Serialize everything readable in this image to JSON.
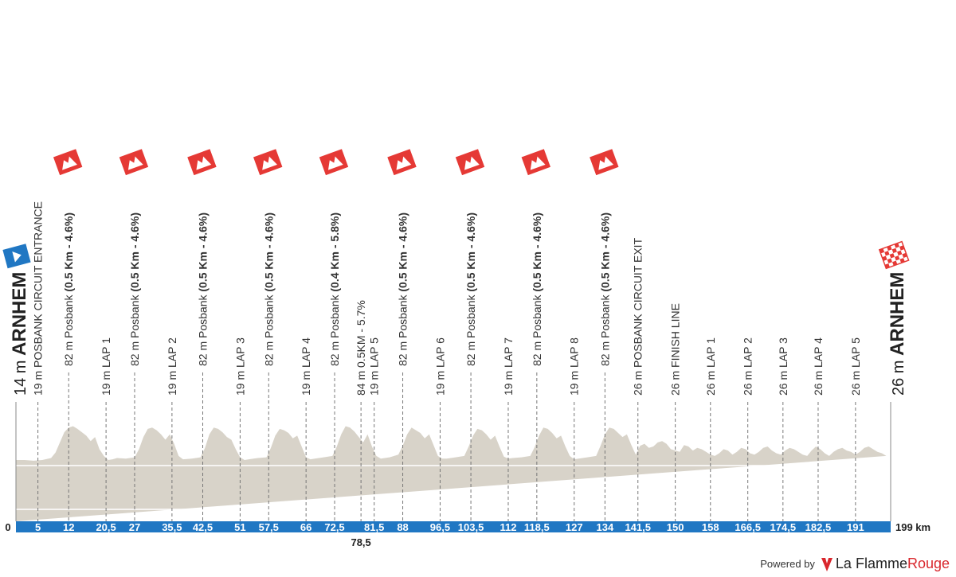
{
  "chart_data": {
    "type": "area",
    "title": "",
    "xlabel": "",
    "ylabel": "",
    "x_unit": "km",
    "x_range": [
      0,
      199
    ],
    "colors": {
      "profile_fill": "#d8d3c9",
      "axis_band": "#2077c3",
      "climb_flag": "#e53935",
      "start_flag": "#2077c3",
      "dash": "#777777",
      "text": "#333333"
    },
    "start": {
      "km": 0,
      "altitude_label": "14 m",
      "place": "ARNHEM"
    },
    "finish": {
      "km": 199,
      "altitude_label": "26 m",
      "place": "ARNHEM"
    },
    "ticks": [
      {
        "km": 5,
        "label": "5"
      },
      {
        "km": 12,
        "label": "12"
      },
      {
        "km": 20.5,
        "label": "20,5"
      },
      {
        "km": 27,
        "label": "27"
      },
      {
        "km": 35.5,
        "label": "35,5"
      },
      {
        "km": 42.5,
        "label": "42,5"
      },
      {
        "km": 51,
        "label": "51"
      },
      {
        "km": 57.5,
        "label": "57,5"
      },
      {
        "km": 66,
        "label": "66"
      },
      {
        "km": 72.5,
        "label": "72,5"
      },
      {
        "km": 78.5,
        "label": "78,5",
        "below": true
      },
      {
        "km": 81.5,
        "label": "81,5"
      },
      {
        "km": 88,
        "label": "88"
      },
      {
        "km": 96.5,
        "label": "96,5"
      },
      {
        "km": 103.5,
        "label": "103,5"
      },
      {
        "km": 112,
        "label": "112"
      },
      {
        "km": 118.5,
        "label": "118,5"
      },
      {
        "km": 127,
        "label": "127"
      },
      {
        "km": 134,
        "label": "134"
      },
      {
        "km": 141.5,
        "label": "141,5"
      },
      {
        "km": 150,
        "label": "150"
      },
      {
        "km": 158,
        "label": "158"
      },
      {
        "km": 166.5,
        "label": "166,5"
      },
      {
        "km": 174.5,
        "label": "174,5"
      },
      {
        "km": 182.5,
        "label": "182,5"
      },
      {
        "km": 191,
        "label": "191"
      }
    ],
    "axis_start_label": "0",
    "axis_end_label": "199 km",
    "waypoints": [
      {
        "km": 5,
        "altitude": "19 m",
        "name": "POSBANK CIRCUIT ENTRANCE",
        "detail": ""
      },
      {
        "km": 12,
        "altitude": "82 m",
        "name": "Posbank",
        "detail": "(0.5 Km - 4.6%)",
        "climb": true
      },
      {
        "km": 20.5,
        "altitude": "19 m",
        "name": "LAP 1",
        "detail": ""
      },
      {
        "km": 27,
        "altitude": "82 m",
        "name": "Posbank",
        "detail": "(0.5 Km - 4.6%)",
        "climb": true
      },
      {
        "km": 35.5,
        "altitude": "19 m",
        "name": "LAP 2",
        "detail": ""
      },
      {
        "km": 42.5,
        "altitude": "82 m",
        "name": "Posbank",
        "detail": "(0.5 Km - 4.6%)",
        "climb": true
      },
      {
        "km": 51,
        "altitude": "19 m",
        "name": "LAP 3",
        "detail": ""
      },
      {
        "km": 57.5,
        "altitude": "82 m",
        "name": "Posbank",
        "detail": "(0.5 Km - 4.6%)",
        "climb": true
      },
      {
        "km": 66,
        "altitude": "19 m",
        "name": "LAP 4",
        "detail": ""
      },
      {
        "km": 72.5,
        "altitude": "82 m",
        "name": "Posbank",
        "detail": "(0.4 Km - 5.8%)",
        "climb": true
      },
      {
        "km": 78.5,
        "altitude": "84 m",
        "name": "0.5KM - 5.7%",
        "detail": ""
      },
      {
        "km": 81.5,
        "altitude": "19 m",
        "name": "LAP 5",
        "detail": ""
      },
      {
        "km": 88,
        "altitude": "82 m",
        "name": "Posbank",
        "detail": "(0.5 Km - 4.6%)",
        "climb": true
      },
      {
        "km": 96.5,
        "altitude": "19 m",
        "name": "LAP 6",
        "detail": ""
      },
      {
        "km": 103.5,
        "altitude": "82 m",
        "name": "Posbank",
        "detail": "(0.5 Km - 4.6%)",
        "climb": true
      },
      {
        "km": 112,
        "altitude": "19 m",
        "name": "LAP 7",
        "detail": ""
      },
      {
        "km": 118.5,
        "altitude": "82 m",
        "name": "Posbank",
        "detail": "(0.5 Km - 4.6%)",
        "climb": true
      },
      {
        "km": 127,
        "altitude": "19 m",
        "name": "LAP 8",
        "detail": ""
      },
      {
        "km": 134,
        "altitude": "82 m",
        "name": "Posbank",
        "detail": "(0.5 Km - 4.6%)",
        "climb": true
      },
      {
        "km": 141.5,
        "altitude": "26 m",
        "name": "POSBANK CIRCUIT EXIT",
        "detail": ""
      },
      {
        "km": 150,
        "altitude": "26 m",
        "name": "FINISH LINE",
        "detail": ""
      },
      {
        "km": 158,
        "altitude": "26 m",
        "name": "LAP 1",
        "detail": ""
      },
      {
        "km": 166.5,
        "altitude": "26 m",
        "name": "LAP 2",
        "detail": ""
      },
      {
        "km": 174.5,
        "altitude": "26 m",
        "name": "LAP 3",
        "detail": ""
      },
      {
        "km": 182.5,
        "altitude": "26 m",
        "name": "LAP 4",
        "detail": ""
      },
      {
        "km": 191,
        "altitude": "26 m",
        "name": "LAP 5",
        "detail": ""
      }
    ],
    "profile": {
      "x": [
        0,
        2,
        4,
        6,
        8,
        9,
        10,
        11,
        12,
        13,
        14,
        15,
        16,
        17,
        18,
        19,
        20,
        21,
        22,
        23,
        25,
        27,
        28,
        29,
        30,
        31,
        32,
        33,
        34,
        35,
        36,
        37,
        38,
        40,
        42,
        43,
        44,
        45,
        46,
        47,
        48,
        49,
        50,
        51,
        52,
        53,
        55,
        57,
        58,
        59,
        60,
        61,
        62,
        63,
        64,
        65,
        66,
        67,
        68,
        70,
        72,
        73,
        74,
        75,
        76,
        77,
        78,
        79,
        80,
        81,
        82,
        83,
        85,
        87,
        88,
        89,
        90,
        91,
        92,
        93,
        94,
        95,
        96,
        97,
        98,
        100,
        102,
        103,
        104,
        105,
        106,
        107,
        108,
        109,
        110,
        111,
        112,
        113,
        115,
        117,
        118,
        119,
        120,
        121,
        122,
        123,
        124,
        125,
        126,
        127,
        128,
        130,
        132,
        133,
        134,
        135,
        136,
        137,
        138,
        139,
        140,
        141,
        142,
        143,
        144,
        145,
        146,
        147,
        148,
        149,
        150,
        151,
        152,
        153,
        154,
        155,
        156,
        157,
        158,
        159,
        160,
        161,
        162,
        163,
        164,
        165,
        166,
        167,
        168,
        169,
        170,
        171,
        172,
        173,
        174,
        175,
        176,
        177,
        178,
        179,
        180,
        181,
        182,
        183,
        184,
        185,
        186,
        187,
        188,
        189,
        190,
        191,
        192,
        193,
        194,
        195,
        196,
        197,
        198,
        199
      ],
      "altitude": [
        14,
        14,
        13,
        14,
        17,
        25,
        40,
        55,
        62,
        64,
        60,
        55,
        50,
        42,
        48,
        30,
        20,
        14,
        15,
        17,
        16,
        18,
        30,
        48,
        60,
        62,
        58,
        52,
        44,
        52,
        38,
        20,
        15,
        16,
        18,
        32,
        52,
        62,
        60,
        55,
        48,
        44,
        30,
        18,
        14,
        15,
        17,
        18,
        32,
        50,
        60,
        58,
        54,
        46,
        50,
        34,
        18,
        15,
        16,
        18,
        20,
        34,
        52,
        64,
        62,
        56,
        48,
        40,
        52,
        34,
        20,
        16,
        18,
        22,
        35,
        52,
        62,
        58,
        54,
        46,
        52,
        36,
        20,
        16,
        16,
        18,
        20,
        34,
        50,
        60,
        58,
        52,
        44,
        50,
        34,
        19,
        16,
        17,
        18,
        20,
        33,
        50,
        62,
        60,
        54,
        46,
        50,
        34,
        20,
        15,
        16,
        18,
        20,
        35,
        52,
        62,
        60,
        54,
        48,
        52,
        36,
        22,
        35,
        38,
        32,
        34,
        40,
        42,
        38,
        30,
        28,
        26,
        36,
        34,
        28,
        32,
        30,
        26,
        22,
        20,
        24,
        30,
        28,
        22,
        26,
        32,
        30,
        24,
        22,
        26,
        32,
        34,
        28,
        24,
        22,
        28,
        32,
        30,
        26,
        22,
        20,
        28,
        34,
        30,
        24,
        20,
        26,
        30,
        32,
        28,
        26,
        22,
        26,
        32,
        34,
        30,
        26,
        24,
        20
      ]
    },
    "ylim": [
      0,
      300
    ]
  },
  "footer": {
    "powered_by": "Powered by",
    "brand_a": "La Flamme",
    "brand_b": "Rouge"
  }
}
